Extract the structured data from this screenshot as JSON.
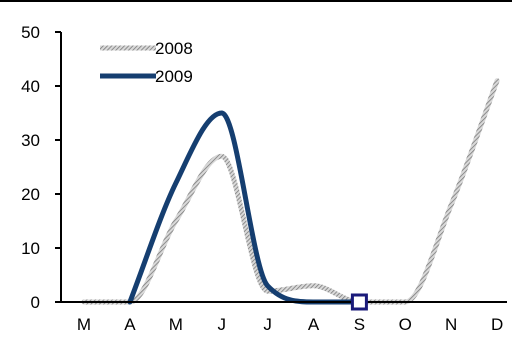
{
  "chart_data": {
    "type": "line",
    "title": "",
    "xlabel": "",
    "ylabel": "",
    "categories": [
      "M",
      "A",
      "M",
      "J",
      "J",
      "A",
      "S",
      "O",
      "N",
      "D"
    ],
    "ylim": [
      0,
      50
    ],
    "yticks": [
      0,
      10,
      20,
      30,
      40,
      50
    ],
    "grid": false,
    "legend_position": "top-left",
    "series": [
      {
        "name": "2008",
        "color": "#8c8c8c",
        "style": "hatched",
        "values": [
          0,
          0,
          15,
          27,
          2,
          3,
          0,
          0,
          18,
          41
        ]
      },
      {
        "name": "2009",
        "color": "#153e70",
        "style": "solid",
        "values": [
          null,
          0,
          22,
          35,
          3,
          0,
          0,
          null,
          null,
          null
        ]
      }
    ],
    "marker": {
      "category_index": 6,
      "value": 0,
      "shape": "square",
      "color": "#1a1a7a"
    }
  }
}
